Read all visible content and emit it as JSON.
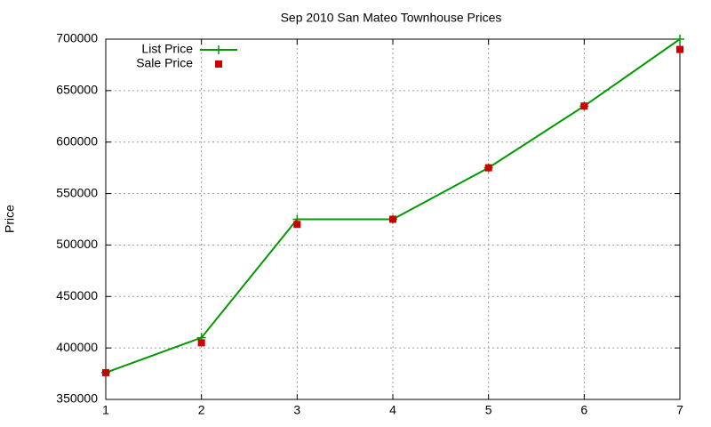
{
  "chart_data": {
    "type": "line",
    "title": "Sep 2010 San Mateo Townhouse Prices",
    "y_label": "Price",
    "x": [
      1,
      2,
      3,
      4,
      5,
      6,
      7
    ],
    "series": [
      {
        "name": "List Price",
        "color": "#009900",
        "line": true,
        "marker": "plus",
        "values": [
          376000,
          410000,
          525000,
          525000,
          575000,
          635000,
          700000
        ]
      },
      {
        "name": "Sale Price",
        "color": "#cc0000",
        "line": false,
        "marker": "square",
        "values": [
          376000,
          405000,
          520000,
          525000,
          575000,
          635000,
          690000
        ]
      }
    ],
    "xlim": [
      1,
      7
    ],
    "xticks": [
      1,
      2,
      3,
      4,
      5,
      6,
      7
    ],
    "ylim": [
      350000,
      700000
    ],
    "yticks": [
      350000,
      400000,
      450000,
      500000,
      550000,
      600000,
      650000,
      700000
    ],
    "grid": true,
    "legend": "top-left"
  }
}
